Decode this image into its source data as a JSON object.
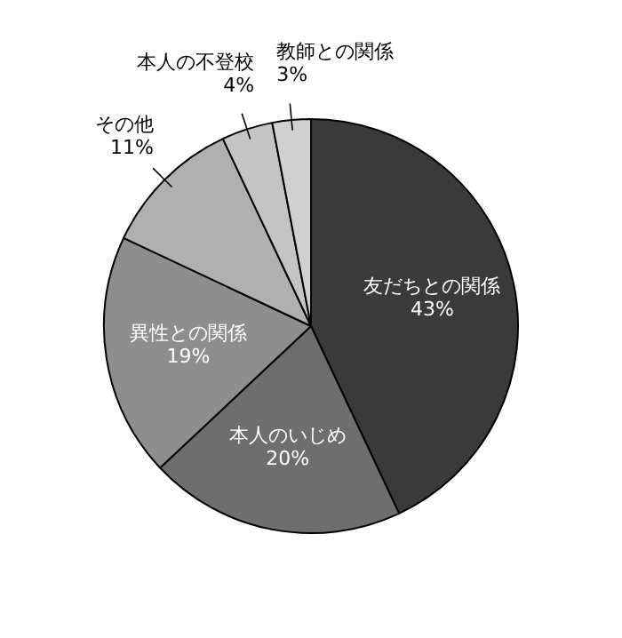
{
  "chart_data": {
    "type": "pie",
    "categories": [
      "友だちとの関係",
      "本人のいじめ",
      "異性との関係",
      "その他",
      "本人の不登校",
      "教師との関係"
    ],
    "values": [
      43,
      20,
      19,
      11,
      4,
      3
    ],
    "value_labels": [
      "43%",
      "20%",
      "19%",
      "11%",
      "4%",
      "3%"
    ],
    "colors": [
      "#3a3a3a",
      "#6e6e6e",
      "#8e8e8e",
      "#b0b0b0",
      "#c4c4c4",
      "#d0d0d0"
    ],
    "legend": false
  }
}
